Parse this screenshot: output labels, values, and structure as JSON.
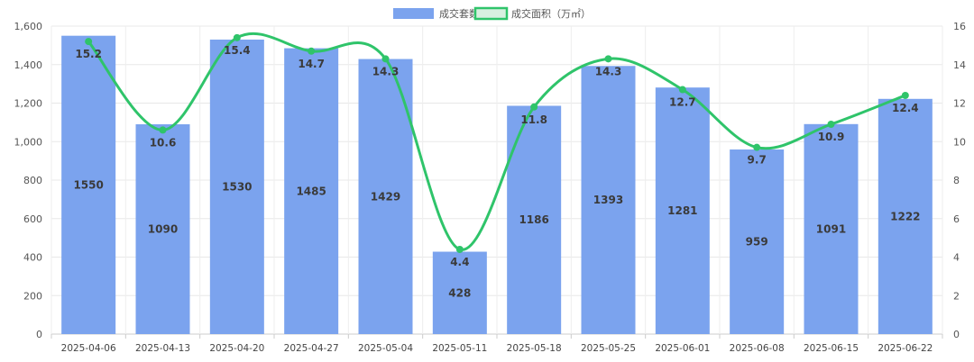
{
  "chart_data": {
    "type": "bar",
    "categories": [
      "2025-04-06",
      "2025-04-13",
      "2025-04-20",
      "2025-04-27",
      "2025-05-04",
      "2025-05-11",
      "2025-05-18",
      "2025-05-25",
      "2025-06-01",
      "2025-06-08",
      "2025-06-15",
      "2025-06-22"
    ],
    "series": [
      {
        "name": "成交套数",
        "type": "bar",
        "axis": "left",
        "color": "#7ba3ee",
        "values": [
          1550,
          1090,
          1530,
          1485,
          1429,
          428,
          1186,
          1393,
          1281,
          959,
          1091,
          1222
        ]
      },
      {
        "name": "成交面积（万㎡）",
        "type": "line",
        "axis": "right",
        "color": "#2fc46a",
        "values": [
          15.2,
          10.6,
          15.4,
          14.7,
          14.3,
          4.4,
          11.8,
          14.3,
          12.7,
          9.7,
          10.9,
          12.4
        ]
      }
    ],
    "y_left": {
      "min": 0,
      "max": 1600,
      "ticks": [
        "0",
        "200",
        "400",
        "600",
        "800",
        "1,000",
        "1,200",
        "1,400",
        "1,600"
      ]
    },
    "y_right": {
      "min": 0,
      "max": 16,
      "ticks": [
        "0",
        "2",
        "4",
        "6",
        "8",
        "10",
        "12",
        "14",
        "16"
      ]
    },
    "grid": true,
    "legend_position": "top-center"
  }
}
